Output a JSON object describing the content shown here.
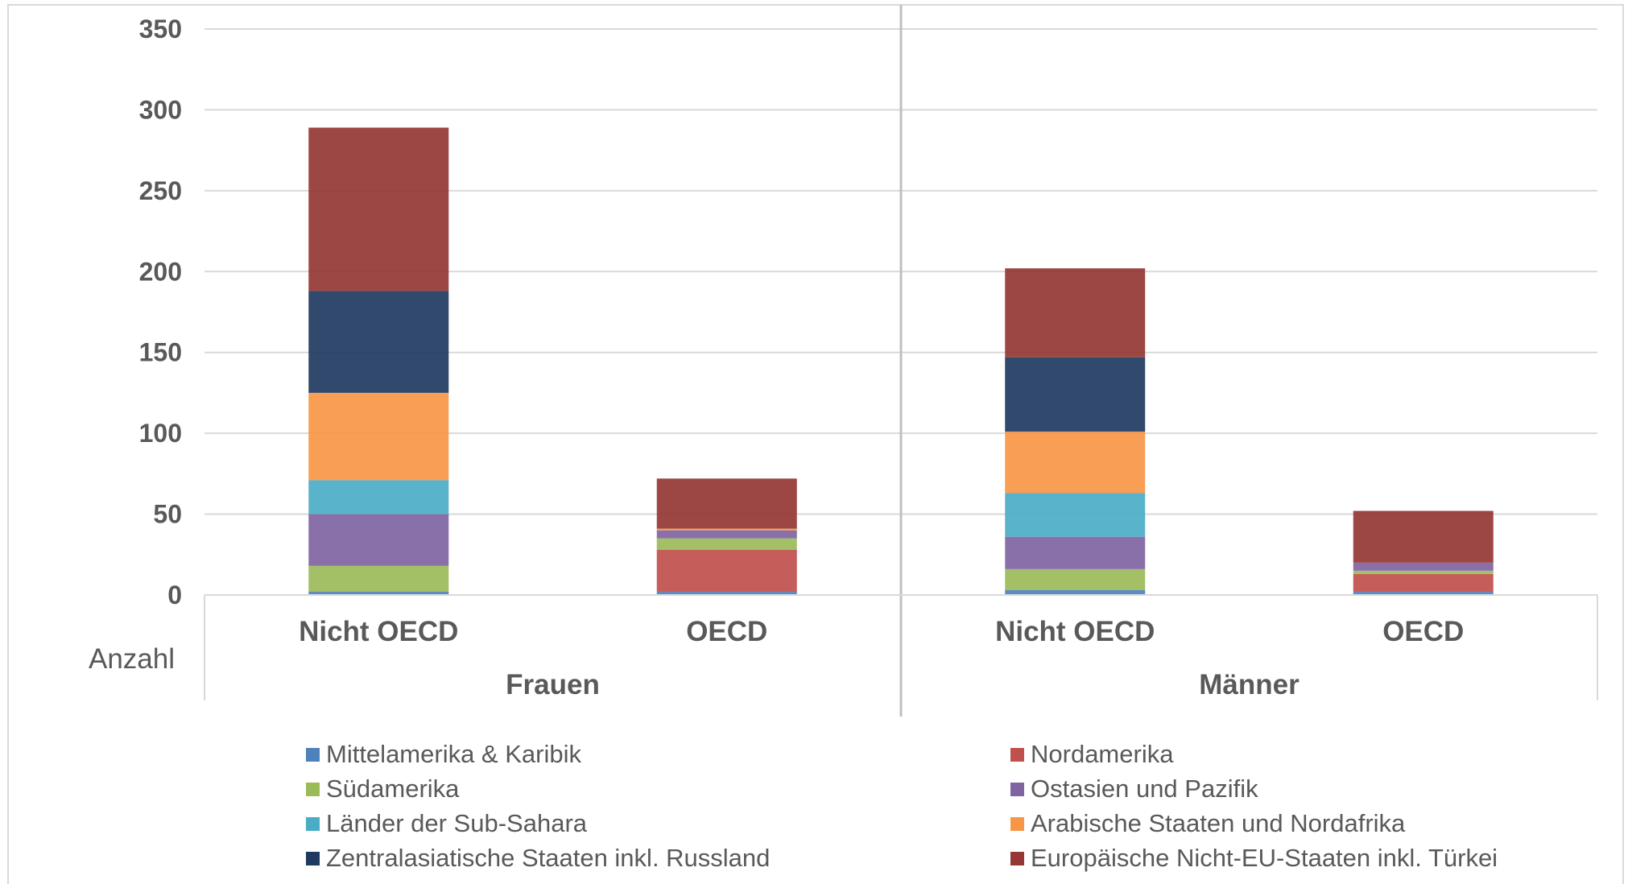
{
  "chart_data": {
    "type": "bar",
    "stacked": true,
    "ylabel": "Anzahl",
    "ylim": [
      0,
      350
    ],
    "yticks": [
      "0",
      "50",
      "100",
      "150",
      "200",
      "250",
      "300",
      "350"
    ],
    "grid": true,
    "legend_position": "bottom",
    "groups": [
      {
        "label": "Frauen",
        "categories": [
          "Nicht OECD",
          "OECD"
        ]
      },
      {
        "label": "Männer",
        "categories": [
          "Nicht OECD",
          "OECD"
        ]
      }
    ],
    "categories": [
      "Nicht OECD",
      "OECD",
      "Nicht OECD",
      "OECD"
    ],
    "series": [
      {
        "name": "Mittelamerika & Karibik",
        "color": "#4F81BD",
        "values": [
          2,
          2,
          3,
          2
        ]
      },
      {
        "name": "Nordamerika",
        "color": "#C0504D",
        "values": [
          0,
          26,
          0,
          11
        ]
      },
      {
        "name": "Südamerika",
        "color": "#9BBB59",
        "values": [
          16,
          7,
          13,
          2
        ]
      },
      {
        "name": "Ostasien und Pazifik",
        "color": "#8064A2",
        "values": [
          32,
          5,
          20,
          5
        ]
      },
      {
        "name": "Länder der Sub-Sahara",
        "color": "#4BACC6",
        "values": [
          21,
          0,
          27,
          0
        ]
      },
      {
        "name": "Arabische Staaten und Nordafrika",
        "color": "#F79646",
        "values": [
          54,
          1,
          38,
          0
        ]
      },
      {
        "name": "Zentralasiatische Staaten inkl. Russland",
        "color": "#1F3A60",
        "values": [
          63,
          0,
          46,
          0
        ]
      },
      {
        "name": "Europäische Nicht-EU-Staaten inkl. Türkei",
        "color": "#953735",
        "values": [
          101,
          31,
          55,
          32
        ]
      }
    ]
  }
}
